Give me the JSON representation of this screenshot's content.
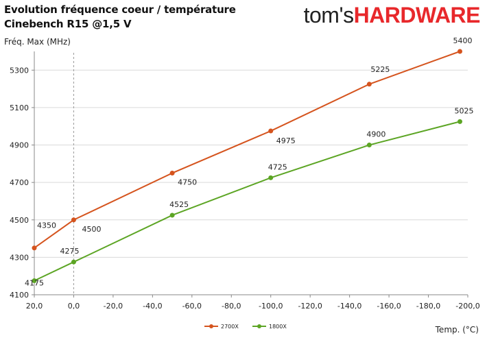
{
  "header": {
    "title_line1": "Evolution fréquence coeur / température",
    "title_line2": "Cinebench R15 @1,5 V",
    "logo_part1": "tom's",
    "logo_part2": "HARDWARE"
  },
  "chart_data": {
    "type": "line",
    "ylabel": "Fréq. Max (MHz)",
    "xlabel": "Temp. (°C)",
    "x": [
      20,
      0,
      -50,
      -100,
      -150,
      -196
    ],
    "xlim": [
      20,
      -200
    ],
    "xticks": [
      20,
      0,
      -20,
      -40,
      -60,
      -80,
      -100,
      -120,
      -140,
      -160,
      -180,
      -200
    ],
    "xtick_labels": [
      "20,0",
      "0,0",
      "-20,0",
      "-40,0",
      "-60,0",
      "-80,0",
      "-100,0",
      "-120,0",
      "-140,0",
      "-160,0",
      "-180,0",
      "-200,0"
    ],
    "ylim": [
      4100,
      5400
    ],
    "yticks": [
      4100,
      4300,
      4500,
      4700,
      4900,
      5100,
      5300
    ],
    "grid": true,
    "legend_position": "bottom-center",
    "series": [
      {
        "name": "2700X",
        "color": "#d5541e",
        "values": [
          4350,
          4500,
          4750,
          4975,
          5225,
          5400
        ],
        "labels": [
          "4350",
          "4500",
          "4750",
          "4975",
          "5225",
          "5400"
        ]
      },
      {
        "name": "1800X",
        "color": "#5ca524",
        "values": [
          4175,
          4275,
          4525,
          4725,
          4900,
          5025
        ],
        "labels": [
          "4175",
          "4275",
          "4525",
          "4725",
          "4900",
          "5025"
        ]
      }
    ]
  }
}
